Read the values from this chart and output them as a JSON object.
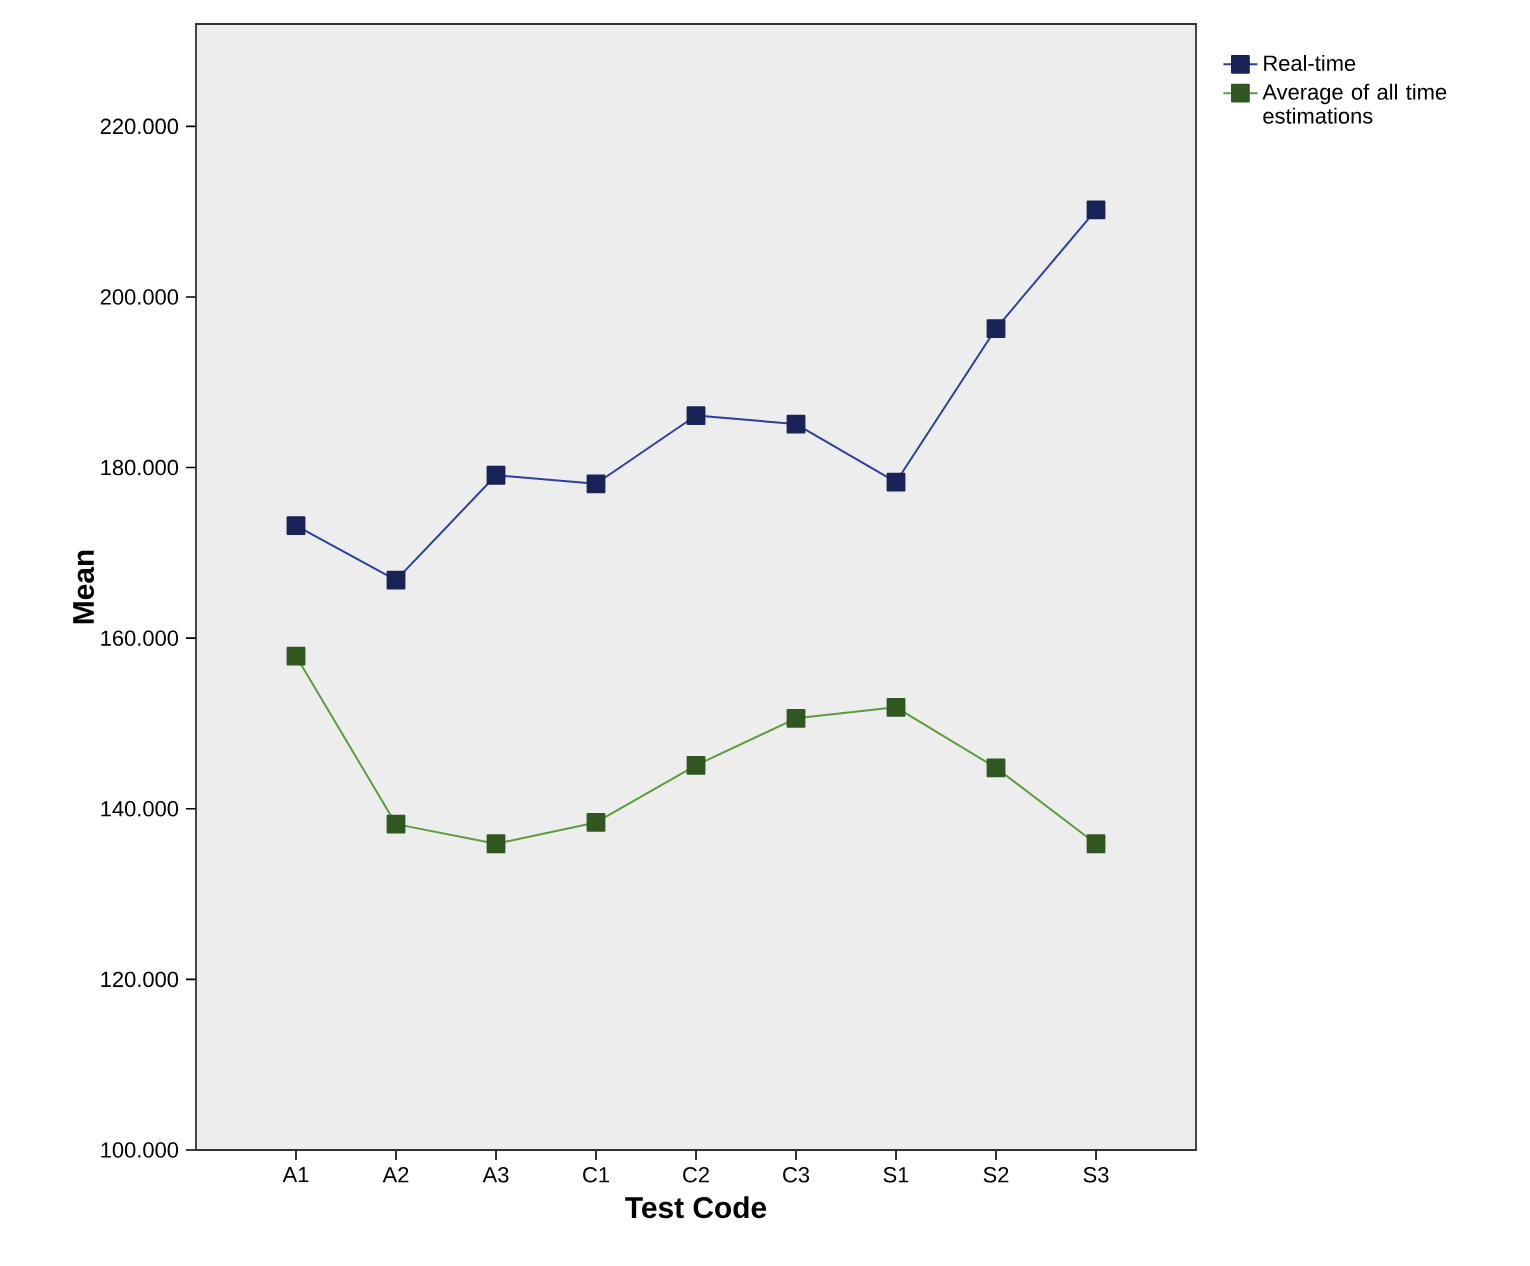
{
  "chart_data": {
    "type": "line",
    "xlabel": "Test Code",
    "ylabel": "Mean",
    "categories": [
      "A1",
      "A2",
      "A3",
      "C1",
      "C2",
      "C3",
      "S1",
      "S2",
      "S3"
    ],
    "series": [
      {
        "name": "Real-time",
        "color": "#2b3f9e",
        "values": [
          173.2,
          166.8,
          179.1,
          178.1,
          186.1,
          185.1,
          178.3,
          196.3,
          210.2
        ]
      },
      {
        "name": "Average of all time estimations",
        "color": "#5a9e3c",
        "values": [
          157.9,
          138.2,
          135.9,
          138.4,
          145.1,
          150.6,
          151.9,
          144.8,
          135.9
        ]
      }
    ],
    "ylim": [
      100,
      232
    ],
    "yticks": [
      {
        "value": 100,
        "label": "100.000"
      },
      {
        "value": 120,
        "label": "120.000"
      },
      {
        "value": 140,
        "label": "140.000"
      },
      {
        "value": 160,
        "label": "160.000"
      },
      {
        "value": 180,
        "label": "180.000"
      },
      {
        "value": 200,
        "label": "200.000"
      },
      {
        "value": 220,
        "label": "220.000"
      }
    ],
    "marker": "square",
    "legend": "top right",
    "grid": false
  }
}
